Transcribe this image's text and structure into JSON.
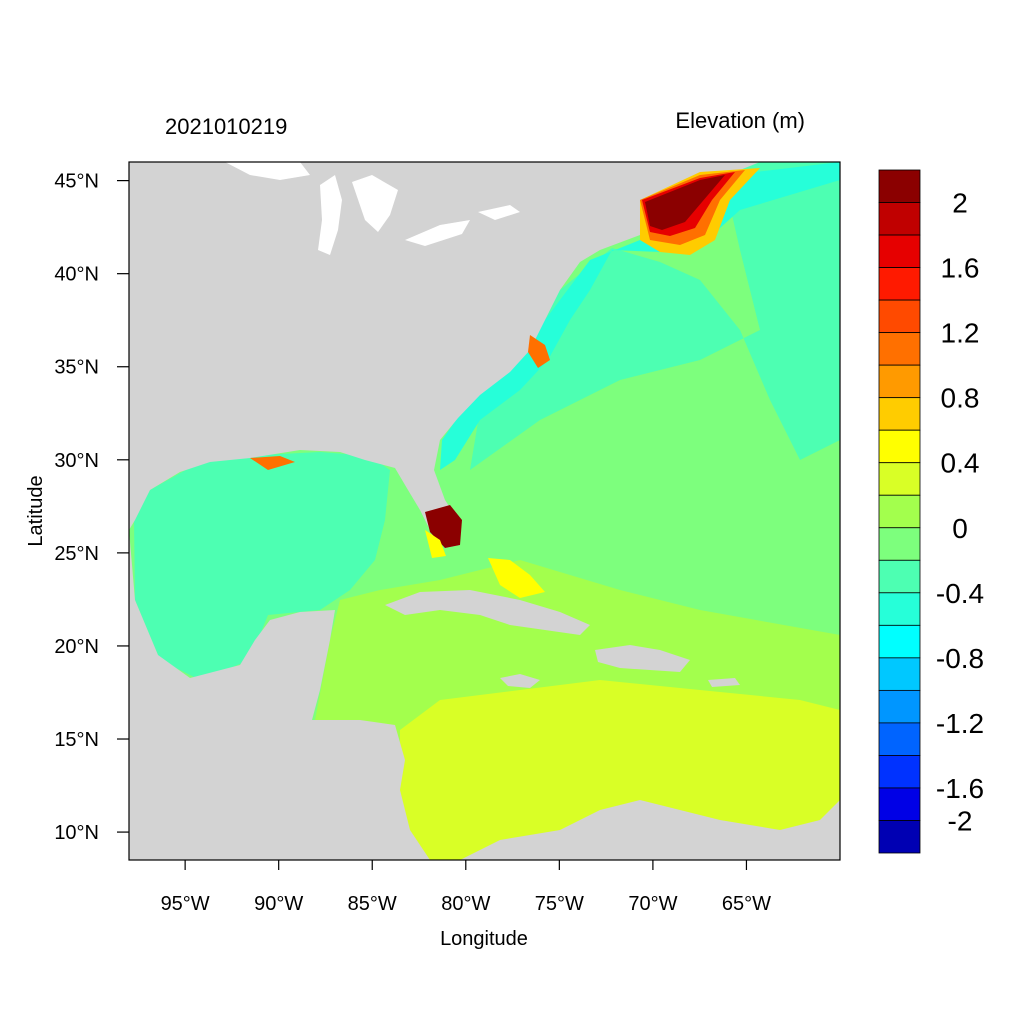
{
  "header": {
    "timestamp": "2021010219",
    "variable": "Elevation (m)"
  },
  "axes": {
    "xlabel": "Longitude",
    "ylabel": "Latitude",
    "lon_range": [
      -98,
      -60
    ],
    "lat_range": [
      8.5,
      46
    ],
    "x_ticks": [
      {
        "lon": -95,
        "label": "95°W"
      },
      {
        "lon": -90,
        "label": "90°W"
      },
      {
        "lon": -85,
        "label": "85°W"
      },
      {
        "lon": -80,
        "label": "80°W"
      },
      {
        "lon": -75,
        "label": "75°W"
      },
      {
        "lon": -70,
        "label": "70°W"
      },
      {
        "lon": -65,
        "label": "65°W"
      }
    ],
    "y_ticks": [
      {
        "lat": 45,
        "label": "45°N"
      },
      {
        "lat": 40,
        "label": "40°N"
      },
      {
        "lat": 35,
        "label": "35°N"
      },
      {
        "lat": 30,
        "label": "30°N"
      },
      {
        "lat": 25,
        "label": "25°N"
      },
      {
        "lat": 20,
        "label": "20°N"
      },
      {
        "lat": 15,
        "label": "15°N"
      },
      {
        "lat": 10,
        "label": "10°N"
      }
    ]
  },
  "colorbar": {
    "colors_top_to_bottom": [
      "#8b0000",
      "#c00000",
      "#e60000",
      "#ff1a00",
      "#ff4a00",
      "#ff7000",
      "#ff9a00",
      "#ffcc00",
      "#ffff00",
      "#d9ff26",
      "#a3ff4d",
      "#7dff7d",
      "#4dffb2",
      "#26ffd9",
      "#00ffff",
      "#00c8ff",
      "#0096ff",
      "#0064ff",
      "#0032ff",
      "#0000e6",
      "#0000b3"
    ],
    "labels": [
      {
        "label": "2",
        "between": 1
      },
      {
        "label": "1.6",
        "between": 3
      },
      {
        "label": "1.2",
        "between": 5
      },
      {
        "label": "0.8",
        "between": 7
      },
      {
        "label": "0.4",
        "between": 9
      },
      {
        "label": "0",
        "between": 11
      },
      {
        "label": "-0.4",
        "between": 13
      },
      {
        "label": "-0.8",
        "between": 15
      },
      {
        "label": "-1.2",
        "between": 17
      },
      {
        "label": "-1.6",
        "between": 19
      },
      {
        "label": "-2",
        "between": 20
      }
    ]
  },
  "map_colors": {
    "land": "#d3d3d3",
    "lakes": "#ffffff",
    "atlantic": "#7dff7d",
    "gulf": "#4dffb2",
    "caribbean": "#a3ff4d",
    "south_caribbean": "#d9ff26",
    "coastal_cyan": "#26ffd9",
    "surge_max": "#8b0000",
    "surge_high": "#e60000",
    "surge_mid": "#ff7000",
    "surge_low": "#ffcc00",
    "surge_min": "#ffff00"
  }
}
